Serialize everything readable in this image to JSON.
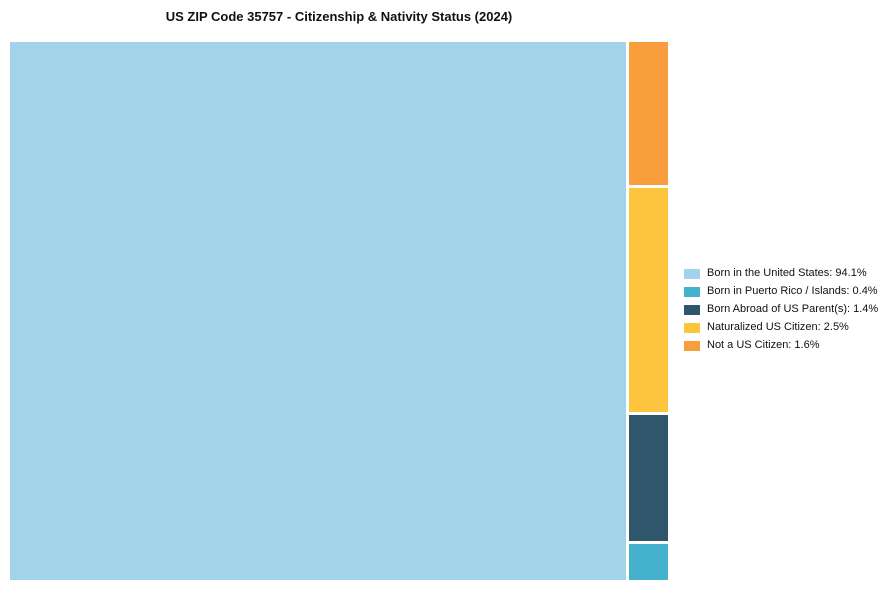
{
  "chart_data": {
    "type": "treemap",
    "title": "US ZIP Code 35757 - Citizenship & Nativity Status (2024)",
    "legend_position": "right",
    "grid": false,
    "series": [
      {
        "label": "Born in the United States",
        "value": 94.1,
        "color": "#a3d3ea",
        "legend": "Born in the United States: 94.1%"
      },
      {
        "label": "Born in Puerto Rico / Islands",
        "value": 0.4,
        "color": "#44b1cd",
        "legend": "Born in Puerto Rico / Islands: 0.4%"
      },
      {
        "label": "Born Abroad of US Parent(s)",
        "value": 1.4,
        "color": "#2f566b",
        "legend": "Born Abroad of US Parent(s): 1.4%"
      },
      {
        "label": "Naturalized US Citizen",
        "value": 2.5,
        "color": "#fdc53e",
        "legend": "Naturalized US Citizen: 2.5%"
      },
      {
        "label": "Not a US Citizen",
        "value": 1.6,
        "color": "#f99e3c",
        "legend": "Not a US Citizen: 1.6%"
      }
    ]
  }
}
